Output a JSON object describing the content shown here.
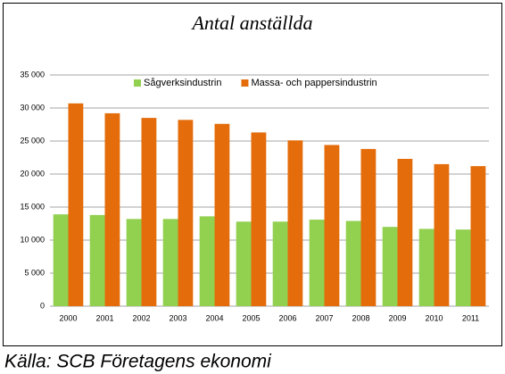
{
  "chart_data": {
    "type": "bar",
    "title": "Antal anställda",
    "source": "Källa: SCB Företagens ekonomi",
    "categories": [
      "2000",
      "2001",
      "2002",
      "2003",
      "2004",
      "2005",
      "2006",
      "2007",
      "2008",
      "2009",
      "2010",
      "2011"
    ],
    "series": [
      {
        "name": "Sågverksindustrin",
        "color": "#92d050",
        "values": [
          13900,
          13800,
          13200,
          13200,
          13600,
          12800,
          12800,
          13100,
          12900,
          12000,
          11700,
          11600
        ]
      },
      {
        "name": "Massa- och pappersindustrin",
        "color": "#e46c0a",
        "values": [
          30700,
          29200,
          28500,
          28200,
          27600,
          26300,
          25100,
          24400,
          23800,
          22300,
          21500,
          21200
        ]
      }
    ],
    "ylim": [
      0,
      35000
    ],
    "yticks": [
      0,
      {
        "value": 5000,
        "label": "5 000"
      },
      {
        "value": 10000,
        "label": "10 000"
      },
      {
        "value": 15000,
        "label": "15 000"
      },
      {
        "value": 20000,
        "label": "20 000"
      },
      {
        "value": 25000,
        "label": "25 000"
      },
      {
        "value": 30000,
        "label": "30 000"
      },
      {
        "value": 35000,
        "label": "35 000"
      }
    ],
    "grid": true,
    "legend": "top"
  }
}
